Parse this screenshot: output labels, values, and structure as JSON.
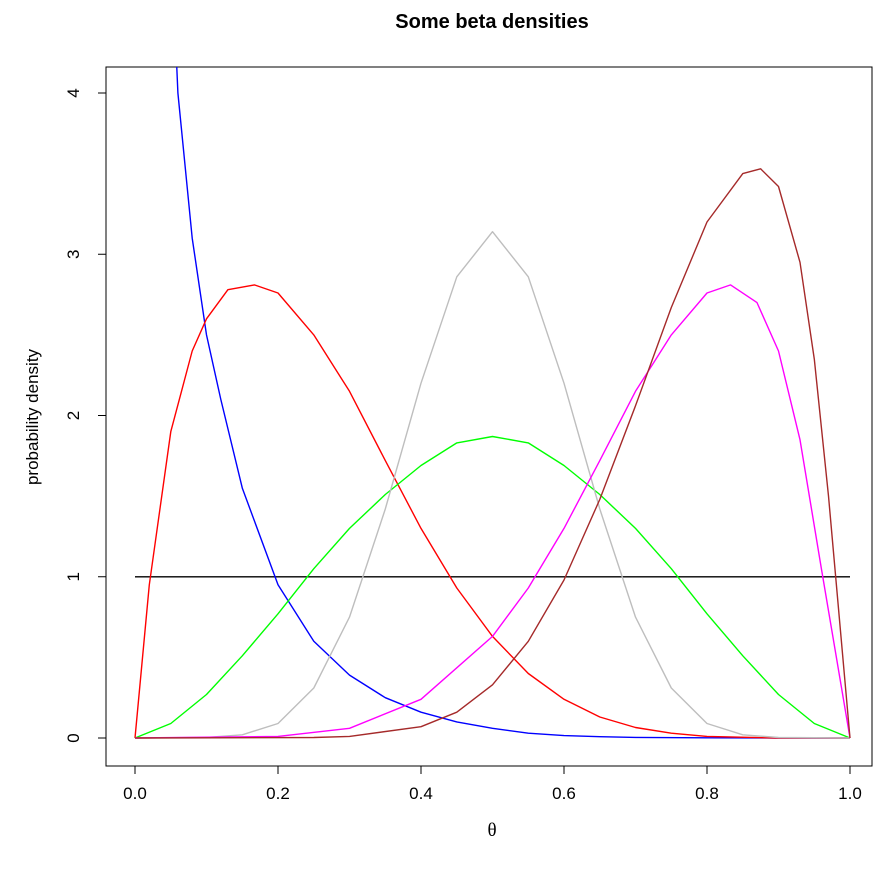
{
  "chart_data": {
    "type": "line",
    "title": "Some beta densities",
    "xlabel": "θ",
    "ylabel": "probability density",
    "xlim": [
      0.0,
      1.0
    ],
    "ylim": [
      0,
      4.2
    ],
    "xticks": [
      "0.0",
      "0.2",
      "0.4",
      "0.6",
      "0.8",
      "1.0"
    ],
    "yticks": [
      "0",
      "1",
      "2",
      "3",
      "4"
    ],
    "grid": false,
    "legend": "none",
    "series": [
      {
        "color": "#000000",
        "x": [
          0.0,
          1.0
        ],
        "y": [
          1,
          1
        ]
      },
      {
        "color": "#0000ff",
        "x": [
          0.058,
          0.06,
          0.08,
          0.1,
          0.12,
          0.15,
          0.2,
          0.25,
          0.3,
          0.35,
          0.4,
          0.45,
          0.5,
          0.55,
          0.6,
          0.65,
          0.7,
          0.8,
          0.9,
          1.0
        ],
        "y": [
          4.2,
          4.0,
          3.1,
          2.5,
          2.1,
          1.55,
          0.95,
          0.6,
          0.39,
          0.25,
          0.16,
          0.1,
          0.06,
          0.03,
          0.015,
          0.008,
          0.004,
          0.001,
          0.0,
          0.0
        ]
      },
      {
        "color": "#ff0000",
        "x": [
          0.0,
          0.02,
          0.05,
          0.08,
          0.1,
          0.13,
          0.167,
          0.2,
          0.25,
          0.3,
          0.35,
          0.4,
          0.45,
          0.5,
          0.55,
          0.6,
          0.65,
          0.7,
          0.75,
          0.8,
          0.9,
          1.0
        ],
        "y": [
          0.0,
          0.95,
          1.9,
          2.4,
          2.6,
          2.78,
          2.81,
          2.76,
          2.5,
          2.15,
          1.72,
          1.3,
          0.93,
          0.63,
          0.4,
          0.24,
          0.13,
          0.065,
          0.03,
          0.01,
          0.0,
          0.0
        ]
      },
      {
        "color": "#00ff00",
        "x": [
          0.0,
          0.05,
          0.1,
          0.15,
          0.2,
          0.25,
          0.3,
          0.35,
          0.4,
          0.45,
          0.5,
          0.55,
          0.6,
          0.65,
          0.7,
          0.75,
          0.8,
          0.85,
          0.9,
          0.95,
          1.0
        ],
        "y": [
          0.0,
          0.09,
          0.27,
          0.51,
          0.77,
          1.05,
          1.3,
          1.51,
          1.69,
          1.83,
          1.87,
          1.83,
          1.69,
          1.51,
          1.3,
          1.05,
          0.77,
          0.51,
          0.27,
          0.09,
          0.0
        ]
      },
      {
        "color": "#bebebe",
        "x": [
          0.0,
          0.1,
          0.15,
          0.2,
          0.25,
          0.3,
          0.35,
          0.4,
          0.45,
          0.5,
          0.55,
          0.6,
          0.65,
          0.7,
          0.75,
          0.8,
          0.85,
          0.9,
          1.0
        ],
        "y": [
          0.0,
          0.003,
          0.02,
          0.09,
          0.31,
          0.75,
          1.42,
          2.2,
          2.86,
          3.14,
          2.86,
          2.2,
          1.42,
          0.75,
          0.31,
          0.09,
          0.02,
          0.003,
          0.0
        ]
      },
      {
        "color": "#ff00ff",
        "x": [
          0.0,
          0.2,
          0.3,
          0.4,
          0.5,
          0.55,
          0.6,
          0.65,
          0.7,
          0.75,
          0.8,
          0.833,
          0.87,
          0.9,
          0.93,
          0.96,
          1.0
        ],
        "y": [
          0.0,
          0.01,
          0.06,
          0.24,
          0.63,
          0.93,
          1.3,
          1.72,
          2.15,
          2.5,
          2.76,
          2.81,
          2.7,
          2.4,
          1.85,
          1.05,
          0.0
        ]
      },
      {
        "color": "#a52a2a",
        "x": [
          0.0,
          0.25,
          0.3,
          0.4,
          0.45,
          0.5,
          0.55,
          0.6,
          0.65,
          0.7,
          0.75,
          0.8,
          0.85,
          0.875,
          0.9,
          0.93,
          0.95,
          0.97,
          1.0
        ],
        "y": [
          0.0,
          0.003,
          0.01,
          0.07,
          0.16,
          0.33,
          0.6,
          0.98,
          1.48,
          2.06,
          2.67,
          3.2,
          3.5,
          3.53,
          3.42,
          2.95,
          2.35,
          1.5,
          0.0
        ]
      }
    ]
  }
}
